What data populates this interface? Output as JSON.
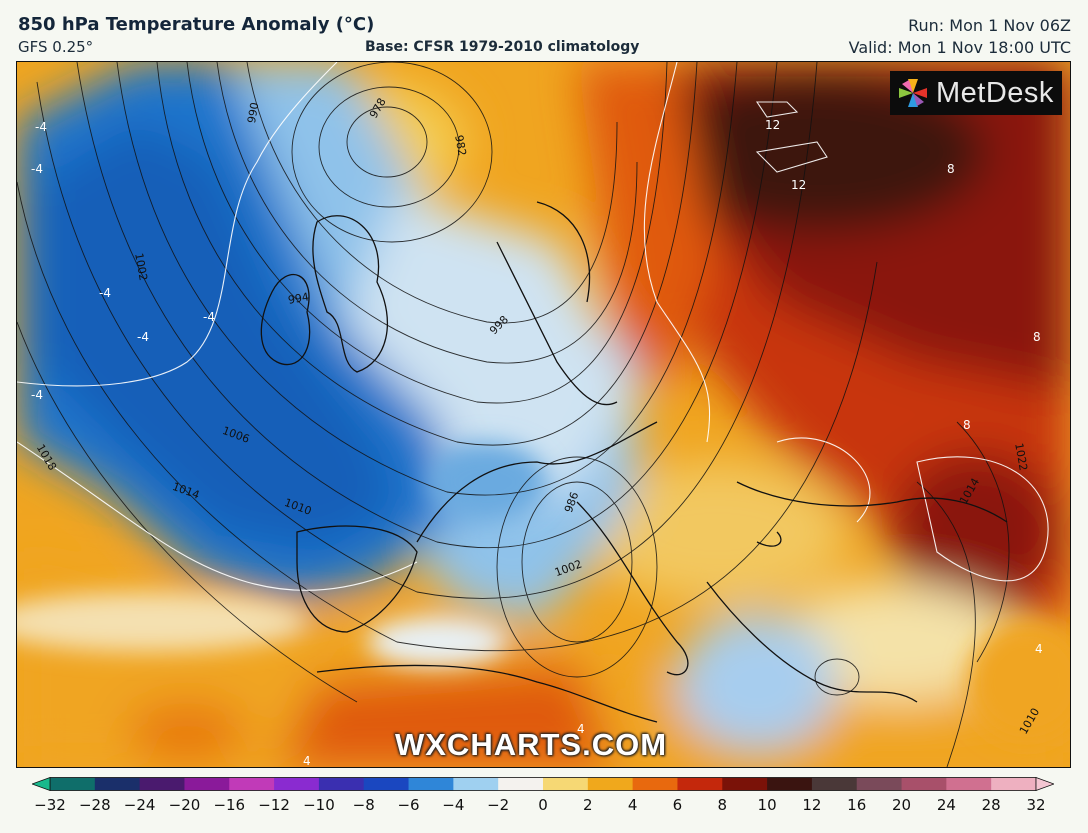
{
  "header": {
    "title": "850 hPa Temperature Anomaly (°C)",
    "model": "GFS 0.25°",
    "base": "Base: CFSR 1979-2010 climatology",
    "run": "Run: Mon 1 Nov 06Z",
    "valid": "Valid: Mon 1 Nov 18:00 UTC"
  },
  "brand": {
    "logo_text": "MetDesk",
    "watermark": "WXCHARTS.COM"
  },
  "colorbar": {
    "ticks": [
      "−32",
      "−28",
      "−24",
      "−20",
      "−16",
      "−12",
      "−10",
      "−8",
      "−6",
      "−4",
      "−2",
      "0",
      "2",
      "4",
      "6",
      "8",
      "10",
      "12",
      "16",
      "20",
      "24",
      "28",
      "32"
    ],
    "colors": [
      "#19b98c",
      "#0f6e6a",
      "#1a2f6a",
      "#4a1a6e",
      "#8a1a9a",
      "#c13ab8",
      "#8a2bd0",
      "#3a2fb0",
      "#1a47c0",
      "#2f86d8",
      "#9fd0f0",
      "#f4f2ee",
      "#f6d874",
      "#f0a81c",
      "#e8690e",
      "#c4280c",
      "#7a1208",
      "#3a1410",
      "#4a3838",
      "#7a4a5a",
      "#a8506a",
      "#d07090",
      "#eeb0c0"
    ]
  },
  "map": {
    "isobar_labels": [
      "990",
      "978",
      "982",
      "1002",
      "994",
      "998",
      "1006",
      "1010",
      "1014",
      "1018",
      "1022",
      "1014",
      "986",
      "1002",
      "1010"
    ],
    "anomaly_labels": [
      "-4",
      "-4",
      "-4",
      "-4",
      "-4",
      "-4",
      "12",
      "12",
      "8",
      "8",
      "8",
      "4",
      "4",
      "4"
    ]
  },
  "colors": {
    "cold": "#1f74cc",
    "cool": "#79b8ea",
    "neutral": "#eef2f4",
    "warm": "#f0a520",
    "hot": "#e05a0c",
    "veryhot": "#9a1a08",
    "extreme": "#3c1410"
  }
}
